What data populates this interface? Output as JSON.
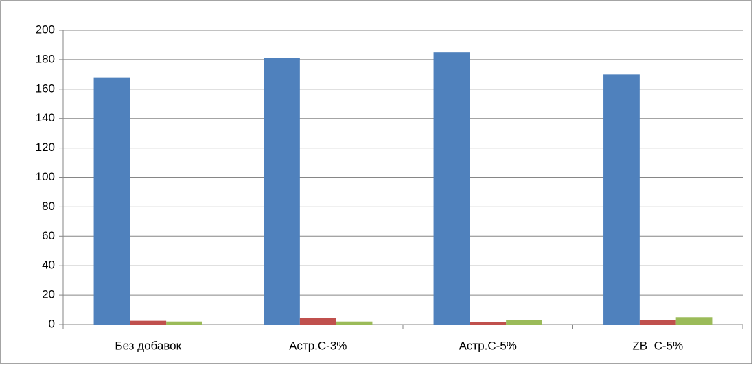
{
  "chart_data": {
    "type": "bar",
    "categories": [
      "Без добавок",
      "Астр.С-3%",
      "Астр.С-5%",
      "ZB  С-5%"
    ],
    "series": [
      {
        "color": "#4f81bd",
        "values": [
          168,
          181,
          185,
          170
        ]
      },
      {
        "color": "#c0504d",
        "values": [
          2.5,
          4.5,
          1.5,
          3
        ]
      },
      {
        "color": "#9bbb59",
        "values": [
          2,
          2,
          3,
          5
        ]
      }
    ],
    "ylim": [
      0,
      200
    ],
    "yticks": [
      0,
      20,
      40,
      60,
      80,
      100,
      120,
      140,
      160,
      180,
      200
    ],
    "grid": true
  }
}
